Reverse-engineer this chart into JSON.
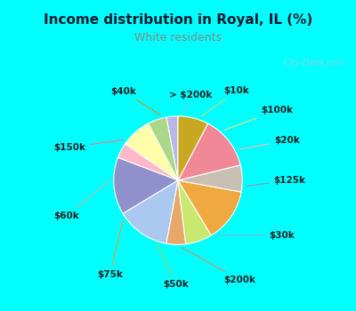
{
  "title": "Income distribution in Royal, IL (%)",
  "subtitle": "White residents",
  "title_color": "#1a1a2e",
  "subtitle_color": "#888888",
  "background_fig": "#00ffff",
  "background_chart": "#d8efe8",
  "watermark": "City-Data.com",
  "labels": [
    "> $200k",
    "$10k",
    "$100k",
    "$20k",
    "$125k",
    "$30k",
    "$200k",
    "$50k",
    "$75k",
    "$60k",
    "$150k",
    "$40k"
  ],
  "values": [
    3,
    5,
    8,
    4,
    15,
    14,
    5,
    7,
    14,
    7,
    14,
    8
  ],
  "colors": [
    "#b8b8e8",
    "#aad888",
    "#ffffaa",
    "#ffb8c8",
    "#9090cc",
    "#aac8f0",
    "#e8a868",
    "#c8e870",
    "#f0a840",
    "#c8c0b0",
    "#f08898",
    "#c8a820"
  ],
  "start_angle": 90,
  "figsize": [
    4.0,
    3.5
  ],
  "dpi": 100,
  "title_fontsize": 11,
  "subtitle_fontsize": 9,
  "label_fontsize": 7.5
}
